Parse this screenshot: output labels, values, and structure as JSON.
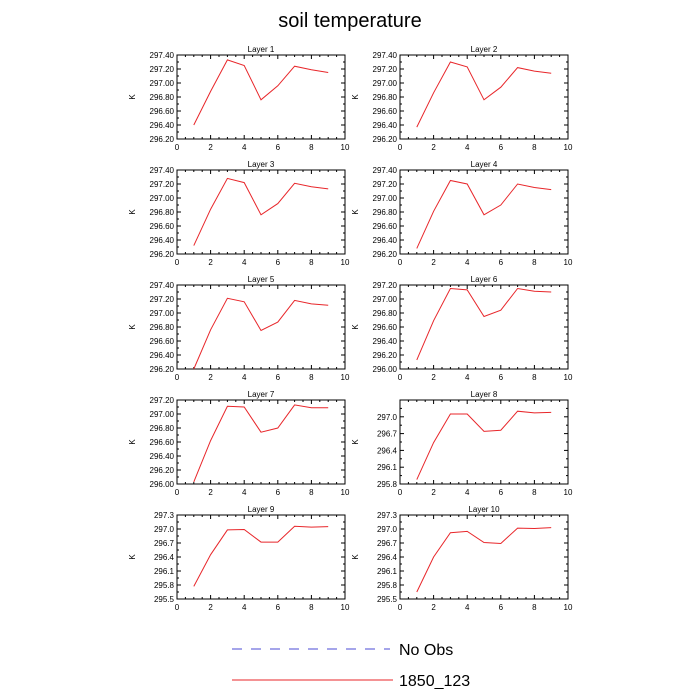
{
  "title": "soil temperature",
  "legend": {
    "entries": [
      {
        "label": "No Obs",
        "color": "#4b4bd6",
        "dash": "dashed"
      },
      {
        "label": "1850_123",
        "color": "#e8262a",
        "dash": "solid"
      }
    ]
  },
  "chart_data": [
    {
      "type": "line",
      "title": "Layer 1",
      "ylabel": "K",
      "xlim": [
        0,
        10
      ],
      "ylim": [
        296.2,
        297.4
      ],
      "xticks": [
        "0",
        "2",
        "4",
        "6",
        "8",
        "10"
      ],
      "yticks": [
        "296.20",
        "296.40",
        "296.60",
        "296.80",
        "297.00",
        "297.20",
        "297.40"
      ],
      "series": [
        {
          "color": "#e8262a",
          "x": [
            1,
            2,
            3,
            4,
            5,
            6,
            7,
            8,
            9
          ],
          "y": [
            296.4,
            296.88,
            297.33,
            297.25,
            296.76,
            296.96,
            297.24,
            297.19,
            297.15
          ]
        }
      ]
    },
    {
      "type": "line",
      "title": "Layer 2",
      "ylabel": "K",
      "xlim": [
        0,
        10
      ],
      "ylim": [
        296.2,
        297.4
      ],
      "xticks": [
        "0",
        "2",
        "4",
        "6",
        "8",
        "10"
      ],
      "yticks": [
        "296.20",
        "296.40",
        "296.60",
        "296.80",
        "297.00",
        "297.20",
        "297.40"
      ],
      "series": [
        {
          "color": "#e8262a",
          "x": [
            1,
            2,
            3,
            4,
            5,
            6,
            7,
            8,
            9
          ],
          "y": [
            296.37,
            296.86,
            297.3,
            297.23,
            296.76,
            296.94,
            297.22,
            297.17,
            297.14
          ]
        }
      ]
    },
    {
      "type": "line",
      "title": "Layer 3",
      "ylabel": "K",
      "xlim": [
        0,
        10
      ],
      "ylim": [
        296.2,
        297.4
      ],
      "xticks": [
        "0",
        "2",
        "4",
        "6",
        "8",
        "10"
      ],
      "yticks": [
        "296.20",
        "296.40",
        "296.60",
        "296.80",
        "297.00",
        "297.20",
        "297.40"
      ],
      "series": [
        {
          "color": "#e8262a",
          "x": [
            1,
            2,
            3,
            4,
            5,
            6,
            7,
            8,
            9
          ],
          "y": [
            296.32,
            296.84,
            297.28,
            297.22,
            296.76,
            296.92,
            297.21,
            297.16,
            297.13
          ]
        }
      ]
    },
    {
      "type": "line",
      "title": "Layer 4",
      "ylabel": "K",
      "xlim": [
        0,
        10
      ],
      "ylim": [
        296.2,
        297.4
      ],
      "xticks": [
        "0",
        "2",
        "4",
        "6",
        "8",
        "10"
      ],
      "yticks": [
        "296.20",
        "296.40",
        "296.60",
        "296.80",
        "297.00",
        "297.20",
        "297.40"
      ],
      "series": [
        {
          "color": "#e8262a",
          "x": [
            1,
            2,
            3,
            4,
            5,
            6,
            7,
            8,
            9
          ],
          "y": [
            296.28,
            296.81,
            297.25,
            297.2,
            296.76,
            296.9,
            297.2,
            297.15,
            297.12
          ]
        }
      ]
    },
    {
      "type": "line",
      "title": "Layer 5",
      "ylabel": "K",
      "xlim": [
        0,
        10
      ],
      "ylim": [
        296.2,
        297.4
      ],
      "xticks": [
        "0",
        "2",
        "4",
        "6",
        "8",
        "10"
      ],
      "yticks": [
        "296.20",
        "296.40",
        "296.60",
        "296.80",
        "297.00",
        "297.20",
        "297.40"
      ],
      "series": [
        {
          "color": "#e8262a",
          "x": [
            1,
            2,
            3,
            4,
            5,
            6,
            7,
            8,
            9
          ],
          "y": [
            296.2,
            296.76,
            297.21,
            297.16,
            296.75,
            296.87,
            297.18,
            297.13,
            297.11
          ]
        }
      ]
    },
    {
      "type": "line",
      "title": "Layer 6",
      "ylabel": "K",
      "xlim": [
        0,
        10
      ],
      "ylim": [
        296.0,
        297.2
      ],
      "xticks": [
        "0",
        "2",
        "4",
        "6",
        "8",
        "10"
      ],
      "yticks": [
        "296.00",
        "296.20",
        "296.40",
        "296.60",
        "296.80",
        "297.00",
        "297.20"
      ],
      "series": [
        {
          "color": "#e8262a",
          "x": [
            1,
            2,
            3,
            4,
            5,
            6,
            7,
            8,
            9
          ],
          "y": [
            296.13,
            296.69,
            297.15,
            297.13,
            296.75,
            296.84,
            297.15,
            297.11,
            297.1
          ]
        }
      ]
    },
    {
      "type": "line",
      "title": "Layer 7",
      "ylabel": "K",
      "xlim": [
        0,
        10
      ],
      "ylim": [
        296.0,
        297.2
      ],
      "xticks": [
        "0",
        "2",
        "4",
        "6",
        "8",
        "10"
      ],
      "yticks": [
        "296.00",
        "296.20",
        "296.40",
        "296.60",
        "296.80",
        "297.00",
        "297.20"
      ],
      "series": [
        {
          "color": "#e8262a",
          "x": [
            1,
            2,
            3,
            4,
            5,
            6,
            7,
            8,
            9
          ],
          "y": [
            296.03,
            296.62,
            297.11,
            297.1,
            296.74,
            296.8,
            297.13,
            297.09,
            297.09
          ]
        }
      ]
    },
    {
      "type": "line",
      "title": "Layer 8",
      "ylabel": "K",
      "xlim": [
        0,
        10
      ],
      "ylim": [
        295.8,
        297.3
      ],
      "xticks": [
        "0",
        "2",
        "4",
        "6",
        "8",
        "10"
      ],
      "yticks": [
        "295.8",
        "296.1",
        "296.4",
        "296.7",
        "297.0"
      ],
      "series": [
        {
          "color": "#e8262a",
          "x": [
            1,
            2,
            3,
            4,
            5,
            6,
            7,
            8,
            9
          ],
          "y": [
            295.88,
            296.54,
            297.05,
            297.05,
            296.74,
            296.76,
            297.1,
            297.07,
            297.08
          ]
        }
      ]
    },
    {
      "type": "line",
      "title": "Layer 9",
      "ylabel": "K",
      "xlim": [
        0,
        10
      ],
      "ylim": [
        295.5,
        297.3
      ],
      "xticks": [
        "0",
        "2",
        "4",
        "6",
        "8",
        "10"
      ],
      "yticks": [
        "295.5",
        "295.8",
        "296.1",
        "296.4",
        "296.7",
        "297.0",
        "297.3"
      ],
      "series": [
        {
          "color": "#e8262a",
          "x": [
            1,
            2,
            3,
            4,
            5,
            6,
            7,
            8,
            9
          ],
          "y": [
            295.77,
            296.45,
            296.98,
            296.99,
            296.72,
            296.72,
            297.06,
            297.04,
            297.05
          ]
        }
      ]
    },
    {
      "type": "line",
      "title": "Layer 10",
      "ylabel": "K",
      "xlim": [
        0,
        10
      ],
      "ylim": [
        295.5,
        297.3
      ],
      "xticks": [
        "0",
        "2",
        "4",
        "6",
        "8",
        "10"
      ],
      "yticks": [
        "295.5",
        "295.8",
        "296.1",
        "296.4",
        "296.7",
        "297.0",
        "297.3"
      ],
      "series": [
        {
          "color": "#e8262a",
          "x": [
            1,
            2,
            3,
            4,
            5,
            6,
            7,
            8,
            9
          ],
          "y": [
            295.65,
            296.4,
            296.92,
            296.95,
            296.71,
            296.69,
            297.02,
            297.01,
            297.03
          ]
        }
      ]
    }
  ]
}
